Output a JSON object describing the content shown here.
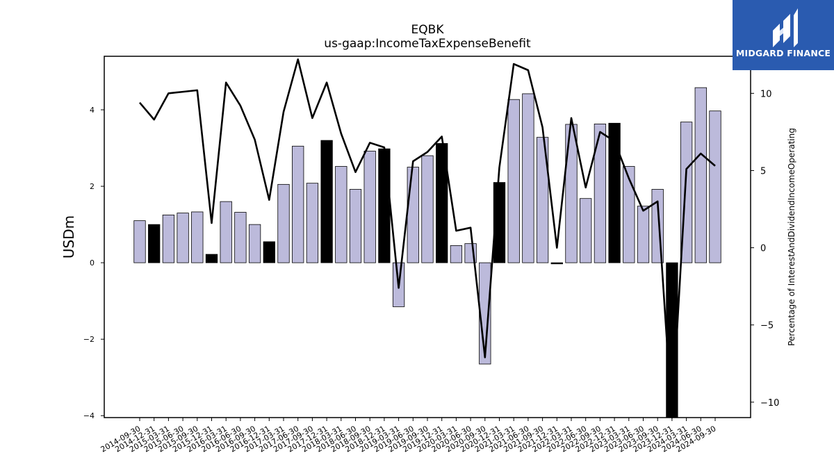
{
  "header": {
    "ticker": "EQBK",
    "metric": "us-gaap:IncomeTaxExpenseBenefit"
  },
  "logo": {
    "text": "MIDGARD FINANCE",
    "background": "#2a5bb0"
  },
  "colors": {
    "bar_fill": "#bcbadb",
    "bar_highlight": "#000000",
    "line": "#000000"
  },
  "chart_data": {
    "type": "bar",
    "title": "EQBK\nus-gaap:IncomeTaxExpenseBenefit",
    "ylabel": "USDm",
    "y2label": "Percentage of InterestAndDividendIncomeOperating",
    "ylim": [
      -4.05,
      5.4
    ],
    "y2lim": [
      -11,
      12.4
    ],
    "yticks": [
      -4,
      -2,
      0,
      2,
      4
    ],
    "y2ticks": [
      -10,
      -5,
      0,
      5,
      10
    ],
    "grid": false,
    "categories": [
      "2014-09-30",
      "2014-12-31",
      "2015-03-31",
      "2015-06-30",
      "2015-09-30",
      "2015-12-31",
      "2016-03-31",
      "2016-06-30",
      "2016-09-30",
      "2016-12-31",
      "2017-03-31",
      "2017-06-30",
      "2017-09-30",
      "2017-12-31",
      "2018-03-31",
      "2018-06-30",
      "2018-09-30",
      "2018-12-31",
      "2019-03-31",
      "2019-06-30",
      "2019-09-30",
      "2019-12-31",
      "2020-03-31",
      "2020-06-30",
      "2020-09-30",
      "2020-12-31",
      "2021-03-31",
      "2021-06-30",
      "2021-09-30",
      "2021-12-31",
      "2022-03-31",
      "2022-06-30",
      "2022-09-30",
      "2022-12-31",
      "2023-03-31",
      "2023-06-30",
      "2023-09-30",
      "2023-12-31",
      "2024-03-31",
      "2024-06-30",
      "2024-09-30"
    ],
    "series": [
      {
        "values": [
          1.1,
          1.0,
          1.25,
          1.3,
          1.33,
          0.22,
          1.6,
          1.32,
          1.0,
          0.55,
          2.05,
          3.05,
          2.08,
          3.2,
          2.52,
          1.92,
          2.92,
          2.98,
          -1.15,
          2.5,
          2.8,
          3.12,
          0.45,
          0.5,
          -2.65,
          2.1,
          4.27,
          4.42,
          3.28,
          -0.03,
          3.62,
          1.68,
          3.63,
          3.65,
          2.52,
          1.48,
          1.92,
          -4.05,
          3.68,
          4.58,
          3.97
        ],
        "highlight": [
          false,
          true,
          false,
          false,
          false,
          true,
          false,
          false,
          false,
          true,
          false,
          false,
          false,
          true,
          false,
          false,
          false,
          true,
          false,
          false,
          false,
          true,
          false,
          false,
          false,
          true,
          false,
          false,
          false,
          true,
          false,
          false,
          false,
          true,
          false,
          false,
          false,
          true,
          false,
          false,
          false
        ]
      },
      {
        "axis": "right",
        "values": [
          9.4,
          8.3,
          10.0,
          10.1,
          10.2,
          1.6,
          10.7,
          9.2,
          7.0,
          3.1,
          8.8,
          12.2,
          8.4,
          10.7,
          7.4,
          4.9,
          6.8,
          6.5,
          -2.6,
          5.6,
          6.2,
          7.2,
          1.1,
          1.3,
          -7.1,
          5.2,
          11.9,
          11.5,
          7.8,
          0.0,
          8.4,
          3.9,
          7.5,
          6.9,
          4.5,
          2.4,
          3.0,
          -11.0,
          5.1,
          6.1,
          5.3
        ]
      }
    ]
  }
}
